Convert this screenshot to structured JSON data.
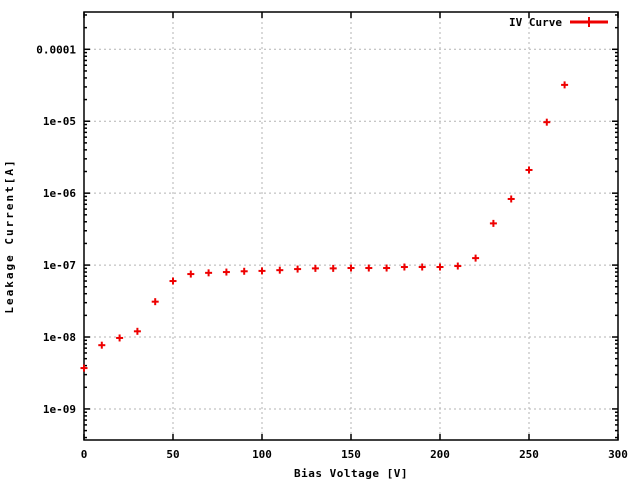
{
  "colors": {
    "series": "#ee0000",
    "grid": "#b3b3b3",
    "axis": "#000000",
    "background": "#ffffff"
  },
  "chart_data": {
    "type": "scatter",
    "title": "",
    "xlabel": "Bias Voltage [V]",
    "ylabel": "Leakage Current[A]",
    "legend": {
      "label": "IV Curve",
      "position": "top-right",
      "marker": "plus-with-line"
    },
    "grid": true,
    "x_axis": {
      "min": 0,
      "max": 300,
      "ticks": [
        0,
        50,
        100,
        150,
        200,
        250,
        300
      ]
    },
    "y_axis": {
      "scale": "log",
      "min": 3.7e-10,
      "max": 0.00033,
      "ticks": [
        {
          "value": 0.0001,
          "label": "0.0001"
        },
        {
          "value": 1e-05,
          "label": "1e-05"
        },
        {
          "value": 1e-06,
          "label": "1e-06"
        },
        {
          "value": 1e-07,
          "label": "1e-07"
        },
        {
          "value": 1e-08,
          "label": "1e-08"
        },
        {
          "value": 1e-09,
          "label": "1e-09"
        }
      ],
      "minor_ticks_per_decade": [
        2,
        3,
        4,
        5,
        6,
        7,
        8,
        9
      ]
    },
    "series": [
      {
        "name": "IV Curve",
        "marker": "plus",
        "x": [
          0,
          10,
          20,
          30,
          40,
          50,
          60,
          70,
          80,
          90,
          100,
          110,
          120,
          130,
          140,
          150,
          160,
          170,
          180,
          190,
          200,
          210,
          220,
          230,
          240,
          250,
          260,
          270
        ],
        "y": [
          3.7e-09,
          7.7e-09,
          9.7e-09,
          1.2e-08,
          3.1e-08,
          6e-08,
          7.5e-08,
          7.8e-08,
          8e-08,
          8.2e-08,
          8.3e-08,
          8.5e-08,
          8.8e-08,
          9e-08,
          9e-08,
          9.1e-08,
          9.1e-08,
          9.1e-08,
          9.4e-08,
          9.4e-08,
          9.4e-08,
          9.7e-08,
          1.25e-07,
          3.8e-07,
          8.3e-07,
          2.1e-06,
          9.7e-06,
          3.2e-05
        ]
      }
    ]
  }
}
